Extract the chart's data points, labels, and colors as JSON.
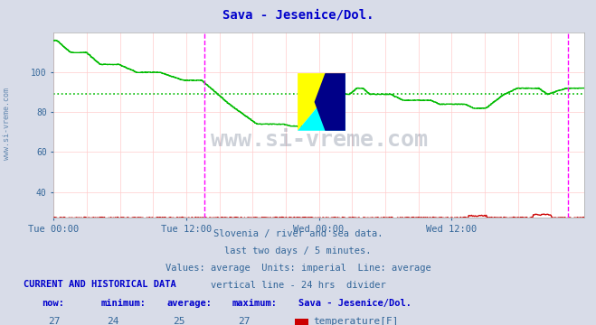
{
  "title": "Sava - Jesenice/Dol.",
  "title_color": "#0000cc",
  "bg_color": "#d8dce8",
  "plot_bg_color": "#ffffff",
  "grid_color": "#ffcccc",
  "temp_color": "#cc0000",
  "flow_color": "#00bb00",
  "avg_temp_color": "#ff8888",
  "avg_flow_color": "#00bb00",
  "vline_color": "#ff00ff",
  "tick_color": "#336699",
  "text_color": "#336699",
  "watermark_color": "#223355",
  "side_label_color": "#336699",
  "ylim": [
    27,
    120
  ],
  "yticks": [
    40,
    60,
    80,
    100
  ],
  "xtick_labels": [
    "Tue 00:00",
    "Tue 12:00",
    "Wed 00:00",
    "Wed 12:00"
  ],
  "n_points": 576,
  "temp_now": 27,
  "temp_min": 24,
  "temp_avg": 25,
  "temp_max": 27,
  "flow_now": 92,
  "flow_min": 72,
  "flow_avg": 89,
  "flow_max": 116,
  "footer_line1": "Slovenia / river and sea data.",
  "footer_line2": "last two days / 5 minutes.",
  "footer_line3": "Values: average  Units: imperial  Line: average",
  "footer_line4": "vertical line - 24 hrs  divider",
  "table_header": "CURRENT AND HISTORICAL DATA",
  "col_headers": [
    "now:",
    "minimum:",
    "average:",
    "maximum:",
    "Sava - Jesenice/Dol."
  ],
  "watermark": "www.si-vreme.com"
}
